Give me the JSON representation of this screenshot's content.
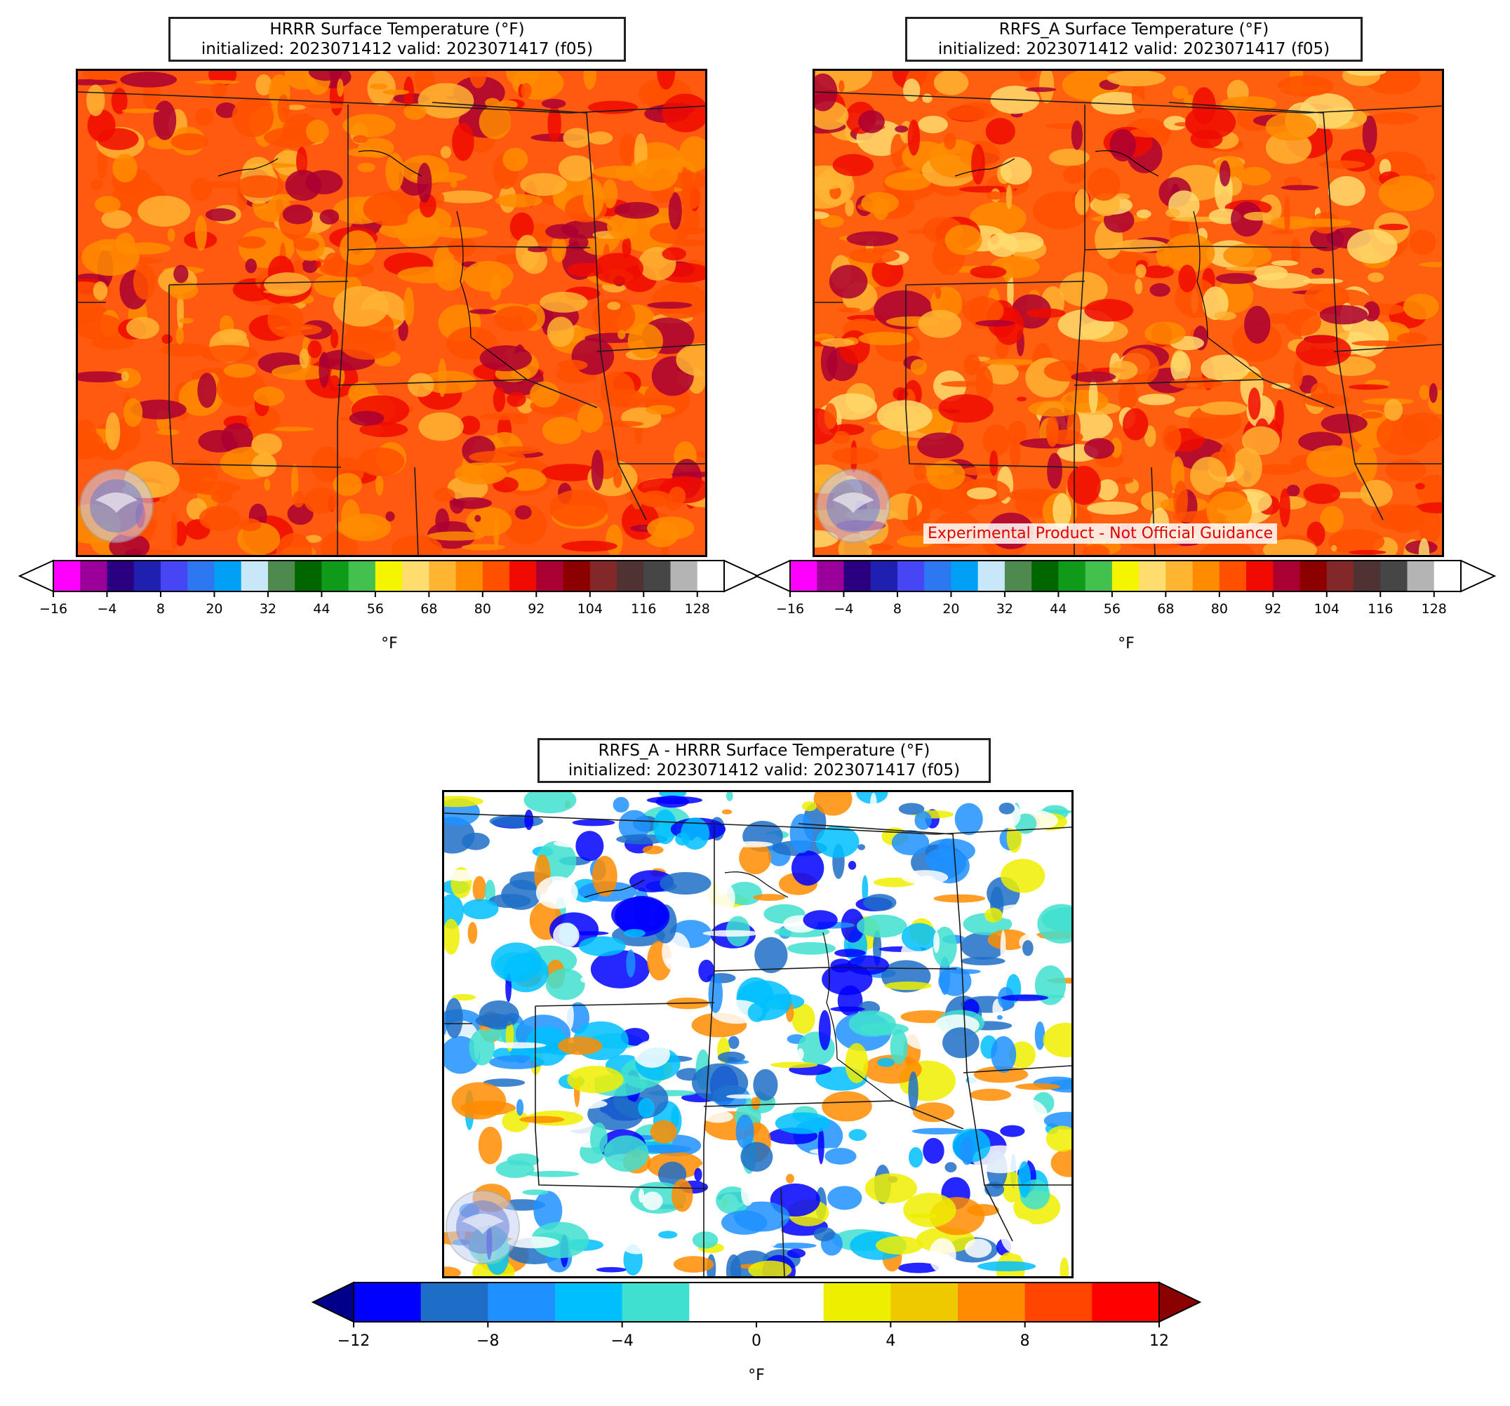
{
  "panels": [
    {
      "id": "hrrr",
      "title_line1": "HRRR Surface Temperature (°F)",
      "title_line2": "initialized: 2023071412 valid: 2023071417 (f05)",
      "units": "°F",
      "logo": "noaa-logo"
    },
    {
      "id": "rrfs",
      "title_line1": "RRFS_A Surface Temperature (°F)",
      "title_line2": "initialized: 2023071412 valid: 2023071417 (f05)",
      "units": "°F",
      "logo": "noaa-logo",
      "disclaimer": "Experimental Product - Not Official Guidance"
    },
    {
      "id": "diff",
      "title_line1": "RRFS_A - HRRR Surface Temperature (°F)",
      "title_line2": "initialized: 2023071412 valid: 2023071417 (f05)",
      "units": "°F",
      "logo": "noaa-logo"
    }
  ],
  "colorbars": {
    "temperature": {
      "extend": "both",
      "ticks": [
        -16,
        -4,
        8,
        20,
        32,
        44,
        56,
        68,
        80,
        92,
        104,
        116,
        128
      ],
      "bounds_start": -16,
      "bounds_step": 6,
      "colors": [
        "#ff00ff",
        "#9b009b",
        "#2b0080",
        "#2020b0",
        "#4646f5",
        "#2d78f0",
        "#00a0f5",
        "#c8e8fa",
        "#4e8a4e",
        "#006600",
        "#109a1a",
        "#44c04e",
        "#f5f500",
        "#ffdc6e",
        "#ffb432",
        "#ff8c00",
        "#ff5000",
        "#f00a00",
        "#aa0032",
        "#8c0000",
        "#822828",
        "#503232",
        "#464646",
        "#b4b4b4",
        "#ffffff"
      ],
      "under_color": "#ffffff",
      "over_color": "#ffffff"
    },
    "difference": {
      "extend": "both",
      "ticks": [
        -12,
        -8,
        -4,
        0,
        4,
        8,
        12
      ],
      "bounds_start": -12,
      "bounds_step": 2,
      "colors": [
        "#0000ff",
        "#1e6ec8",
        "#1e90ff",
        "#00bfff",
        "#40e0d0",
        "#ffffff",
        "#ffffff",
        "#eeee00",
        "#eec900",
        "#ff8c00",
        "#ff4500",
        "#ff0000"
      ],
      "under_color": "#00008b",
      "over_color": "#8b0000"
    }
  },
  "map_palettes": {
    "hrrr": [
      "#ff5000",
      "#ff8c00",
      "#ffb432",
      "#f00a00",
      "#aa0032",
      "#ff5000",
      "#ff8c00"
    ],
    "rrfs": [
      "#ff5000",
      "#ff8c00",
      "#ffb432",
      "#f00a00",
      "#aa0032",
      "#ff5000",
      "#ffdc6e"
    ],
    "diff": [
      "#ffffff",
      "#00bfff",
      "#1e90ff",
      "#40e0d0",
      "#ffffff",
      "#eeee00",
      "#0000ff",
      "#1e6ec8",
      "#ff8c00"
    ]
  }
}
